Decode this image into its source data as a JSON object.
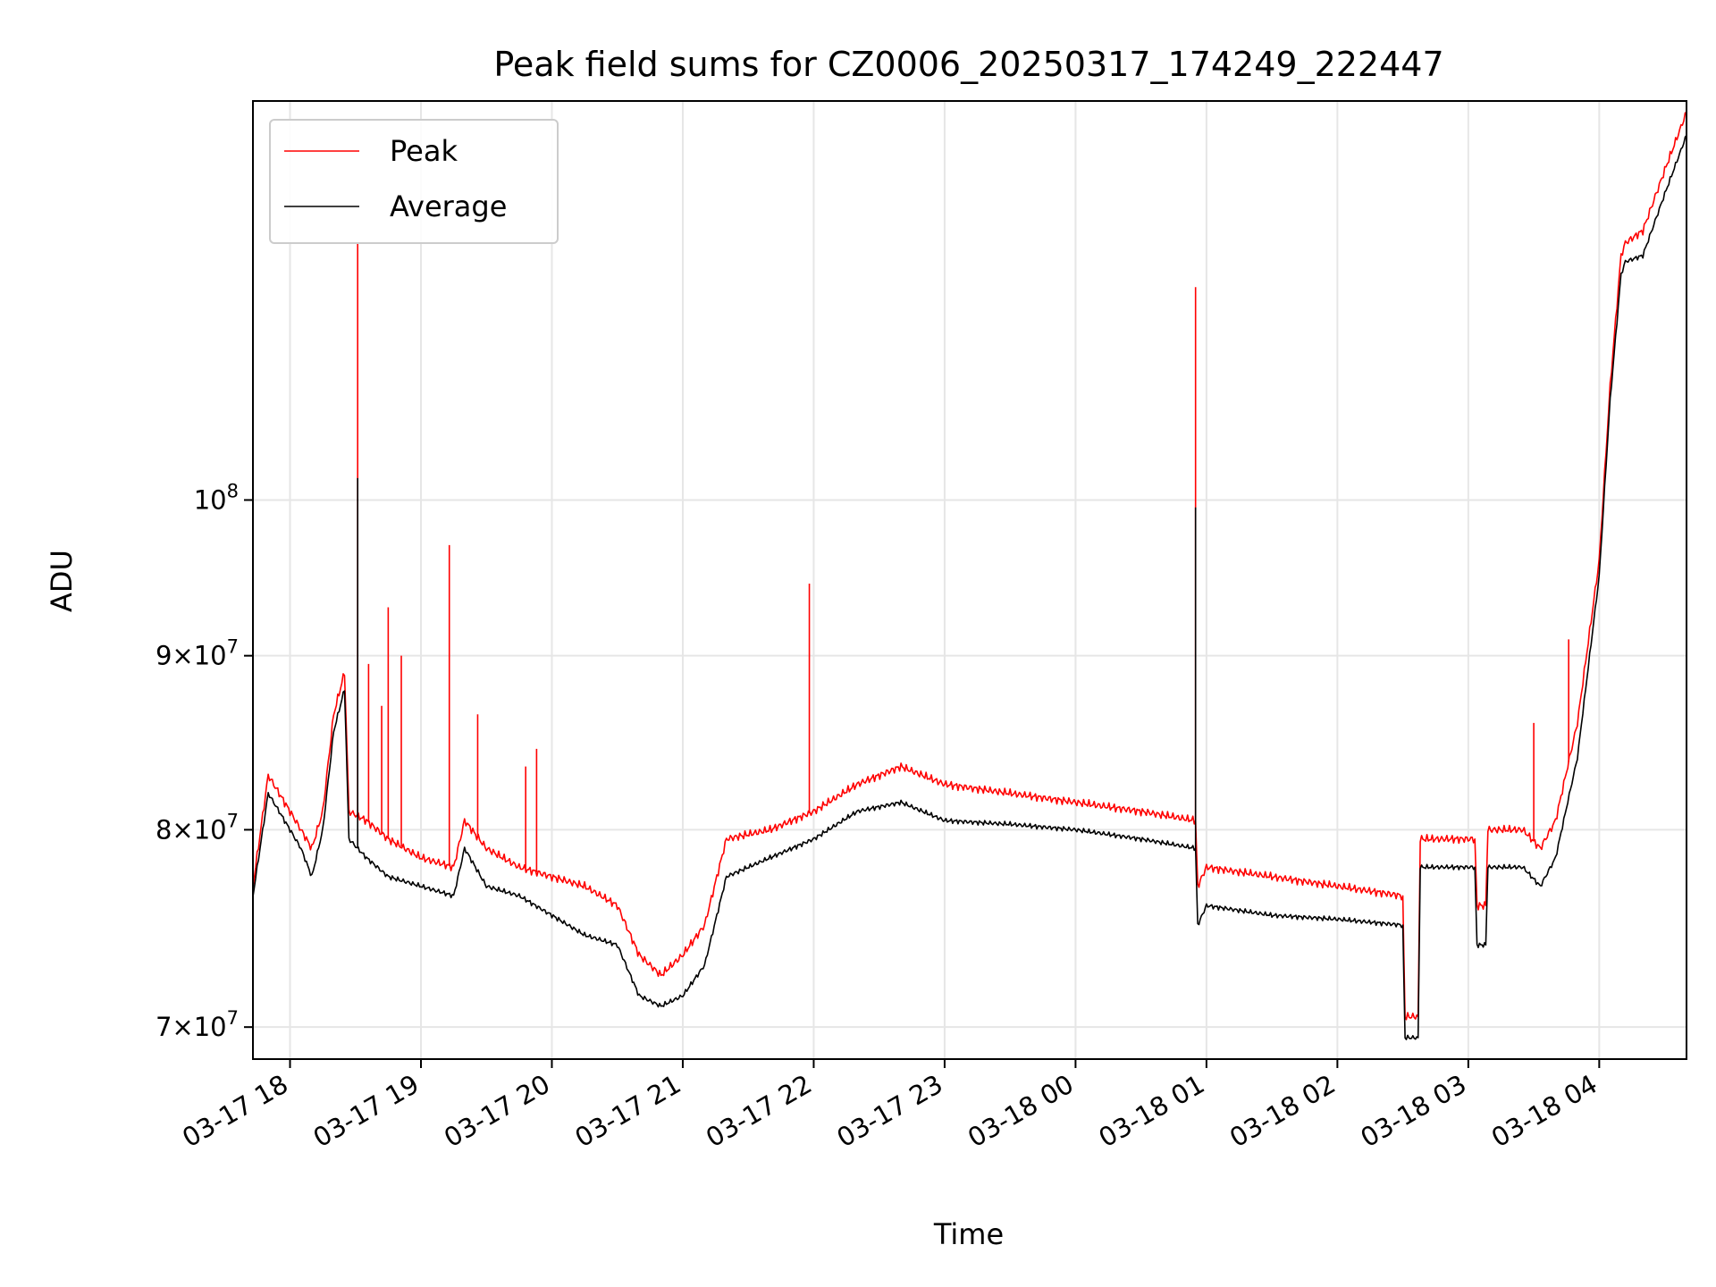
{
  "chart_data": {
    "type": "line",
    "title": "Peak field sums for CZ0006_20250317_174249_222447",
    "xlabel": "Time",
    "ylabel": "ADU",
    "y_scale": "log",
    "ylim": [
      68500000,
      131000000
    ],
    "xlim": [
      "03-17 17:43",
      "03-18 04:40"
    ],
    "grid": true,
    "legend_position": "top-left",
    "x_tick_labels": [
      "03-17 18",
      "03-17 19",
      "03-17 20",
      "03-17 21",
      "03-17 22",
      "03-17 23",
      "03-18 00",
      "03-18 01",
      "03-18 02",
      "03-18 03",
      "03-18 04"
    ],
    "x_tick_values": [
      "03-17 18:00",
      "03-17 19:00",
      "03-17 20:00",
      "03-17 21:00",
      "03-17 22:00",
      "03-17 23:00",
      "03-18 00:00",
      "03-18 01:00",
      "03-18 02:00",
      "03-18 03:00",
      "03-18 04:00"
    ],
    "y_ticks": [
      {
        "value": 70000000,
        "mantissa": "7",
        "exp": "7"
      },
      {
        "value": 80000000,
        "mantissa": "8",
        "exp": "7"
      },
      {
        "value": 90000000,
        "mantissa": "9",
        "exp": "7"
      },
      {
        "value": 100000000,
        "mantissa": "",
        "exp": "8"
      }
    ],
    "series": [
      {
        "name": "Peak",
        "color": "#ff0000",
        "x": [
          "03-17 17:43",
          "03-17 17:50",
          "03-17 17:55",
          "03-17 18:05",
          "03-17 18:10",
          "03-17 18:15",
          "03-17 18:20",
          "03-17 18:25",
          "03-17 18:27",
          "03-17 18:35",
          "03-17 18:45",
          "03-17 19:00",
          "03-17 19:15",
          "03-17 19:20",
          "03-17 19:30",
          "03-17 19:45",
          "03-17 20:00",
          "03-17 20:15",
          "03-17 20:30",
          "03-17 20:40",
          "03-17 20:50",
          "03-17 21:00",
          "03-17 21:10",
          "03-17 21:20",
          "03-17 21:40",
          "03-17 22:00",
          "03-17 22:20",
          "03-17 22:40",
          "03-17 23:00",
          "03-17 23:30",
          "03-18 00:00",
          "03-18 00:30",
          "03-18 00:55",
          "03-18 00:56",
          "03-18 01:00",
          "03-18 01:30",
          "03-18 02:00",
          "03-18 02:30",
          "03-18 02:31",
          "03-18 02:37",
          "03-18 02:38",
          "03-18 03:03",
          "03-18 03:04",
          "03-18 03:08",
          "03-18 03:09",
          "03-18 03:25",
          "03-18 03:33",
          "03-18 03:40",
          "03-18 03:50",
          "03-18 04:00",
          "03-18 04:05",
          "03-18 04:10",
          "03-18 04:12",
          "03-18 04:20",
          "03-18 04:30",
          "03-18 04:40"
        ],
        "y": [
          77000000,
          83000000,
          82000000,
          80000000,
          79000000,
          81000000,
          86500000,
          89000000,
          81000000,
          80500000,
          79500000,
          78500000,
          78000000,
          80500000,
          79000000,
          78000000,
          77500000,
          77000000,
          76000000,
          73500000,
          72500000,
          73500000,
          75000000,
          79500000,
          80000000,
          81000000,
          82500000,
          83500000,
          82500000,
          82000000,
          81500000,
          81000000,
          80500000,
          77000000,
          78000000,
          77500000,
          77000000,
          76500000,
          70500000,
          70500000,
          79500000,
          79500000,
          76000000,
          76000000,
          80000000,
          80000000,
          79000000,
          80500000,
          86000000,
          96000000,
          108000000,
          118000000,
          119000000,
          120000000,
          125000000,
          130000000
        ]
      },
      {
        "name": "Average",
        "color": "#000000",
        "x": [
          "03-17 17:43",
          "03-17 17:50",
          "03-17 17:55",
          "03-17 18:05",
          "03-17 18:10",
          "03-17 18:15",
          "03-17 18:20",
          "03-17 18:25",
          "03-17 18:27",
          "03-17 18:35",
          "03-17 18:45",
          "03-17 19:00",
          "03-17 19:15",
          "03-17 19:20",
          "03-17 19:30",
          "03-17 19:45",
          "03-17 20:00",
          "03-17 20:15",
          "03-17 20:30",
          "03-17 20:40",
          "03-17 20:50",
          "03-17 21:00",
          "03-17 21:10",
          "03-17 21:20",
          "03-17 21:40",
          "03-17 22:00",
          "03-17 22:20",
          "03-17 22:40",
          "03-17 23:00",
          "03-17 23:30",
          "03-18 00:00",
          "03-18 00:30",
          "03-18 00:55",
          "03-18 00:56",
          "03-18 01:00",
          "03-18 01:30",
          "03-18 02:00",
          "03-18 02:30",
          "03-18 02:31",
          "03-18 02:37",
          "03-18 02:38",
          "03-18 03:03",
          "03-18 03:04",
          "03-18 03:08",
          "03-18 03:09",
          "03-18 03:25",
          "03-18 03:33",
          "03-18 03:40",
          "03-18 03:50",
          "03-18 04:00",
          "03-18 04:05",
          "03-18 04:10",
          "03-18 04:12",
          "03-18 04:20",
          "03-18 04:30",
          "03-18 04:40"
        ],
        "y": [
          76500000,
          82000000,
          81000000,
          79000000,
          77500000,
          80000000,
          85500000,
          88000000,
          79500000,
          78500000,
          77500000,
          77000000,
          76500000,
          79000000,
          77000000,
          76500000,
          75500000,
          74500000,
          74000000,
          71500000,
          71000000,
          71500000,
          73000000,
          77500000,
          78500000,
          79500000,
          81000000,
          81500000,
          80500000,
          80300000,
          80000000,
          79500000,
          79000000,
          75000000,
          76000000,
          75500000,
          75300000,
          75000000,
          69500000,
          69500000,
          78000000,
          78000000,
          74000000,
          74000000,
          78000000,
          78000000,
          77000000,
          78500000,
          84000000,
          95000000,
          107000000,
          116500000,
          117500000,
          118000000,
          123000000,
          128000000
        ]
      }
    ],
    "spikes": [
      {
        "series": "Peak",
        "x": "03-17 18:31",
        "y": 119000000
      },
      {
        "series": "Average",
        "x": "03-17 18:31",
        "y": 101500000
      },
      {
        "series": "Peak",
        "x": "03-17 18:36",
        "y": 89500000
      },
      {
        "series": "Peak",
        "x": "03-17 18:42",
        "y": 87000000
      },
      {
        "series": "Peak",
        "x": "03-17 18:45",
        "y": 93000000
      },
      {
        "series": "Peak",
        "x": "03-17 18:51",
        "y": 90000000
      },
      {
        "series": "Peak",
        "x": "03-17 19:13",
        "y": 97000000
      },
      {
        "series": "Peak",
        "x": "03-17 19:26",
        "y": 86500000
      },
      {
        "series": "Peak",
        "x": "03-17 19:48",
        "y": 83500000
      },
      {
        "series": "Peak",
        "x": "03-17 19:53",
        "y": 84500000
      },
      {
        "series": "Peak",
        "x": "03-17 21:58",
        "y": 94500000
      },
      {
        "series": "Peak",
        "x": "03-18 00:55",
        "y": 115500000
      },
      {
        "series": "Average",
        "x": "03-18 00:55",
        "y": 99500000
      },
      {
        "series": "Peak",
        "x": "03-18 03:30",
        "y": 86000000
      },
      {
        "series": "Peak",
        "x": "03-18 03:46",
        "y": 91000000
      }
    ]
  }
}
